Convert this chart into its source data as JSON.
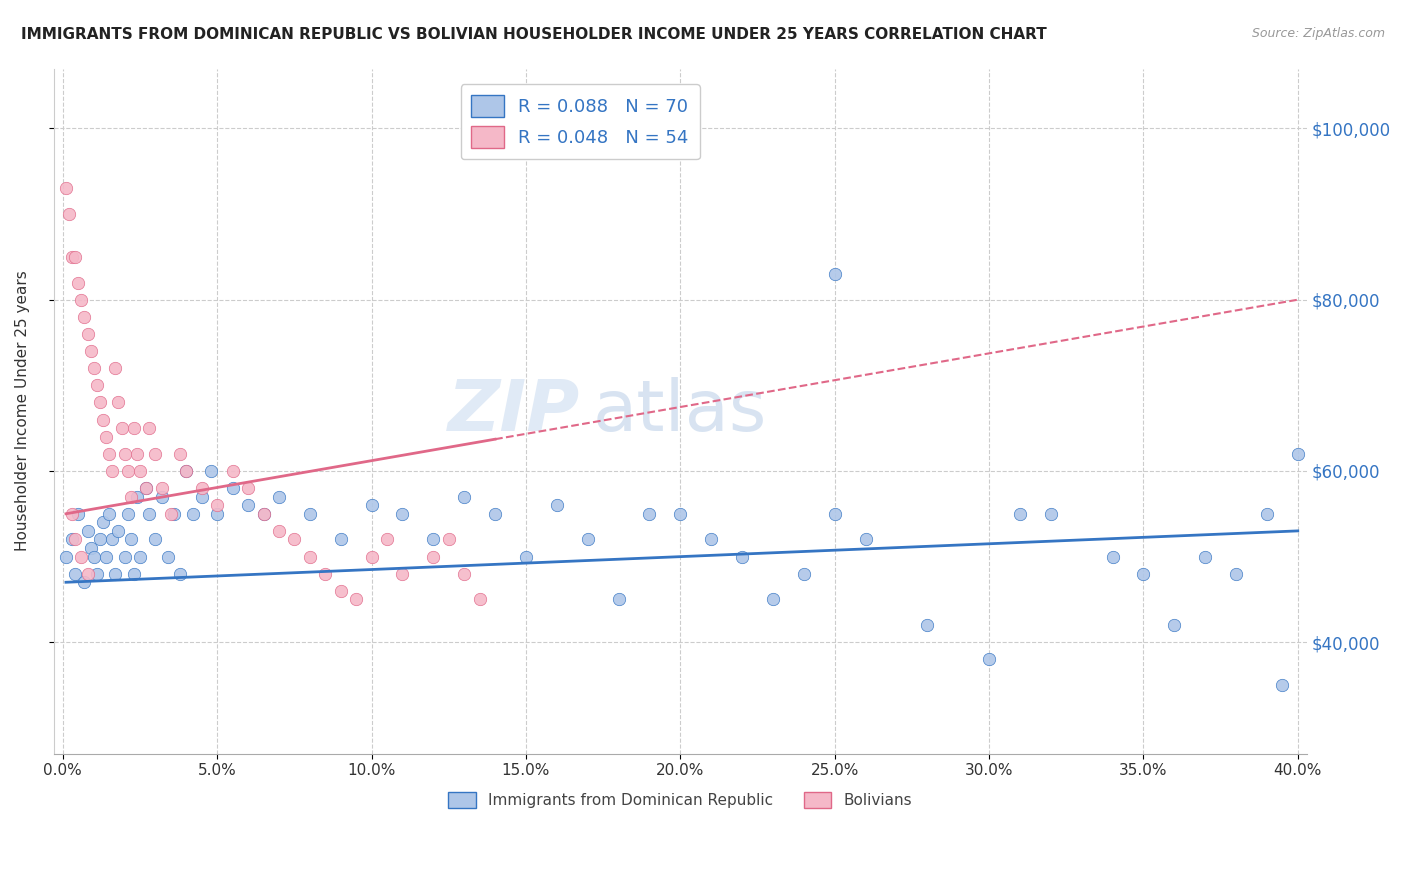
{
  "title": "IMMIGRANTS FROM DOMINICAN REPUBLIC VS BOLIVIAN HOUSEHOLDER INCOME UNDER 25 YEARS CORRELATION CHART",
  "source": "Source: ZipAtlas.com",
  "ylabel": "Householder Income Under 25 years",
  "yticks_labels": [
    "$40,000",
    "$60,000",
    "$80,000",
    "$100,000"
  ],
  "ytick_vals": [
    40000,
    60000,
    80000,
    100000
  ],
  "ylim": [
    27000,
    107000
  ],
  "xlim": [
    -0.003,
    0.403
  ],
  "legend1_label": "R = 0.088   N = 70",
  "legend2_label": "R = 0.048   N = 54",
  "series1_color": "#aec6e8",
  "series2_color": "#f5b8c8",
  "trendline1_color": "#3575c3",
  "trendline2_color": "#e06888",
  "watermark_zip": "ZIP",
  "watermark_atlas": "atlas",
  "legend_label1": "Immigrants from Dominican Republic",
  "legend_label2": "Bolivians",
  "dr_x": [
    0.001,
    0.003,
    0.004,
    0.005,
    0.007,
    0.008,
    0.009,
    0.01,
    0.011,
    0.012,
    0.013,
    0.014,
    0.015,
    0.016,
    0.017,
    0.018,
    0.02,
    0.021,
    0.022,
    0.023,
    0.024,
    0.025,
    0.027,
    0.028,
    0.03,
    0.032,
    0.034,
    0.036,
    0.038,
    0.04,
    0.042,
    0.045,
    0.048,
    0.05,
    0.055,
    0.06,
    0.065,
    0.07,
    0.08,
    0.09,
    0.1,
    0.11,
    0.12,
    0.13,
    0.14,
    0.15,
    0.16,
    0.17,
    0.18,
    0.19,
    0.2,
    0.21,
    0.22,
    0.23,
    0.24,
    0.25,
    0.26,
    0.28,
    0.3,
    0.31,
    0.32,
    0.34,
    0.35,
    0.36,
    0.37,
    0.38,
    0.39,
    0.4,
    0.395,
    0.25
  ],
  "dr_y": [
    50000,
    52000,
    48000,
    55000,
    47000,
    53000,
    51000,
    50000,
    48000,
    52000,
    54000,
    50000,
    55000,
    52000,
    48000,
    53000,
    50000,
    55000,
    52000,
    48000,
    57000,
    50000,
    58000,
    55000,
    52000,
    57000,
    50000,
    55000,
    48000,
    60000,
    55000,
    57000,
    60000,
    55000,
    58000,
    56000,
    55000,
    57000,
    55000,
    52000,
    56000,
    55000,
    52000,
    57000,
    55000,
    50000,
    56000,
    52000,
    45000,
    55000,
    55000,
    52000,
    50000,
    45000,
    48000,
    55000,
    52000,
    42000,
    38000,
    55000,
    55000,
    50000,
    48000,
    42000,
    50000,
    48000,
    55000,
    62000,
    35000,
    83000
  ],
  "bo_x": [
    0.001,
    0.002,
    0.003,
    0.004,
    0.005,
    0.006,
    0.007,
    0.008,
    0.009,
    0.01,
    0.011,
    0.012,
    0.013,
    0.014,
    0.015,
    0.016,
    0.017,
    0.018,
    0.019,
    0.02,
    0.021,
    0.022,
    0.023,
    0.024,
    0.025,
    0.027,
    0.028,
    0.03,
    0.032,
    0.035,
    0.038,
    0.04,
    0.045,
    0.05,
    0.055,
    0.06,
    0.065,
    0.07,
    0.075,
    0.08,
    0.085,
    0.09,
    0.095,
    0.1,
    0.105,
    0.11,
    0.12,
    0.125,
    0.13,
    0.135,
    0.003,
    0.004,
    0.006,
    0.008
  ],
  "bo_y": [
    93000,
    90000,
    85000,
    85000,
    82000,
    80000,
    78000,
    76000,
    74000,
    72000,
    70000,
    68000,
    66000,
    64000,
    62000,
    60000,
    72000,
    68000,
    65000,
    62000,
    60000,
    57000,
    65000,
    62000,
    60000,
    58000,
    65000,
    62000,
    58000,
    55000,
    62000,
    60000,
    58000,
    56000,
    60000,
    58000,
    55000,
    53000,
    52000,
    50000,
    48000,
    46000,
    45000,
    50000,
    52000,
    48000,
    50000,
    52000,
    48000,
    45000,
    55000,
    52000,
    50000,
    48000
  ],
  "trendline_dr_x0": 0.001,
  "trendline_dr_x1": 0.4,
  "trendline_dr_y0": 47000,
  "trendline_dr_y1": 53000,
  "trendline_bo_x0": 0.001,
  "trendline_bo_x1": 0.4,
  "trendline_bo_y0": 55000,
  "trendline_bo_y1": 80000
}
